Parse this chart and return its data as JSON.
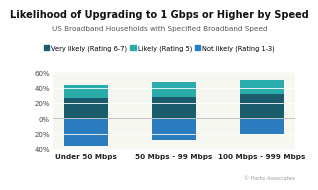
{
  "title": "Likelihood of Upgrading to 1 Gbps or Higher by Speed",
  "subtitle": "US Broadband Households with Specified Broadband Speed",
  "credit": "© Parks Associates",
  "categories": [
    "Under 50 Mbps",
    "50 Mbps - 99 Mbps",
    "100 Mbps - 999 Mbps"
  ],
  "series": [
    {
      "name": "Very likely (Rating 6-7)",
      "color": "#1a5c6b",
      "values": [
        27,
        28,
        32
      ]
    },
    {
      "name": "Likely (Rating 5)",
      "color": "#2aacaa",
      "values": [
        17,
        20,
        19
      ]
    },
    {
      "name": "Not likely (Rating 1-3)",
      "color": "#2b7bbf",
      "values": [
        -37,
        -28,
        -20
      ]
    }
  ],
  "ylim": [
    -42,
    62
  ],
  "yticks": [
    -40,
    -20,
    0,
    20,
    40,
    60
  ],
  "ytick_labels": [
    "40%",
    "20%",
    "0%",
    "20%",
    "40%",
    "60%"
  ],
  "background_color": "#ffffff",
  "plot_bg_color": "#f7f7f2",
  "grid_color": "#ffffff",
  "title_fontsize": 7.0,
  "subtitle_fontsize": 5.2,
  "legend_fontsize": 4.8,
  "tick_fontsize": 5.0,
  "label_fontsize": 5.2,
  "bar_width": 0.5
}
